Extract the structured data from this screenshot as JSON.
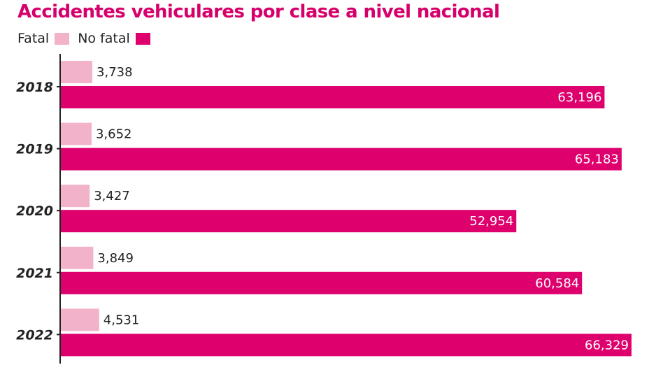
{
  "chart_data": {
    "type": "bar",
    "orientation": "horizontal",
    "title": "Accidentes vehiculares por clase a nivel nacional",
    "categories": [
      "2018",
      "2019",
      "2020",
      "2021",
      "2022"
    ],
    "series": [
      {
        "name": "Fatal",
        "color": "#f2b3ca",
        "values": [
          3738,
          3652,
          3427,
          3849,
          4531
        ]
      },
      {
        "name": "No fatal",
        "color": "#dd006d",
        "values": [
          63196,
          65183,
          52954,
          60584,
          66329
        ]
      }
    ],
    "value_labels": {
      "Fatal": [
        "3,738",
        "3,652",
        "3,427",
        "3,849",
        "4,531"
      ],
      "No fatal": [
        "63,196",
        "65,183",
        "52,954",
        "60,584",
        "66,329"
      ]
    },
    "xlim": [
      0,
      66329
    ],
    "grid": false,
    "legend_position": "top-left"
  }
}
